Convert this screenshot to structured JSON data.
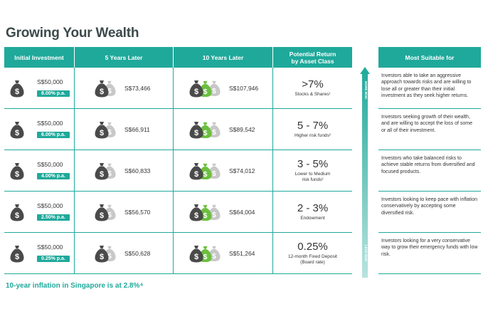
{
  "title": "Growing Your Wealth",
  "headers": {
    "initial": "Initial Investment",
    "five": "5 Years Later",
    "ten": "10 Years Later",
    "ret_line1": "Potential Return",
    "ret_line2": "by Asset Class",
    "suitable": "Most Suitable for"
  },
  "rows": [
    {
      "initial": "S$50,000",
      "rate": "8.00% p.a.",
      "five": "S$73,466",
      "ten": "S$107,946",
      "ret": ">7%",
      "ret_sub1": "Stocks & Shares¹",
      "ret_sub2": "",
      "suit": "Investors able to take an aggressive approach towards risks and are willing to lose all or greater than their initial investment as they seek higher returns."
    },
    {
      "initial": "S$50,000",
      "rate": "6.00% p.a.",
      "five": "S$66,911",
      "ten": "S$89,542",
      "ret": "5 - 7%",
      "ret_sub1": "Higher risk funds²",
      "ret_sub2": "",
      "suit": "Investors seeking growth of their wealth, and are willing to accept the loss of some or all of their investment."
    },
    {
      "initial": "S$50,000",
      "rate": "4.00% p.a.",
      "five": "S$60,833",
      "ten": "S$74,012",
      "ret": "3 - 5%",
      "ret_sub1": "Lower to Medium",
      "ret_sub2": "risk funds²",
      "suit": "Investors who take balanced risks to achieve stable returns from diversified and focused products."
    },
    {
      "initial": "S$50,000",
      "rate": "2.50% p.a.",
      "five": "S$56,570",
      "ten": "S$64,004",
      "ret": "2 - 3%",
      "ret_sub1": "Endowment",
      "ret_sub2": "",
      "suit": "Investors looking to keep pace with inflation conservatively by accepting some diversified risk."
    },
    {
      "initial": "S$50,000",
      "rate": "0.25% p.a.",
      "five": "S$50,628",
      "ten": "S$51,264",
      "ret": "0.25%",
      "ret_sub1": "12-month Fixed Deposit",
      "ret_sub2": "(Board rate)",
      "suit": "Investors looking for a very conservative way to grow their emergency funds with low risk."
    }
  ],
  "arrow": {
    "top_label": "MORE RISK",
    "bottom_label": "LESS RISK"
  },
  "footer": "10-year inflation in Singapore is at 2.8%⁴",
  "colors": {
    "teal": "#1fa99b",
    "bag_dark": "#4a4a4a",
    "bag_green": "#6cbf3f",
    "bag_grey": "#c8c8c8"
  }
}
